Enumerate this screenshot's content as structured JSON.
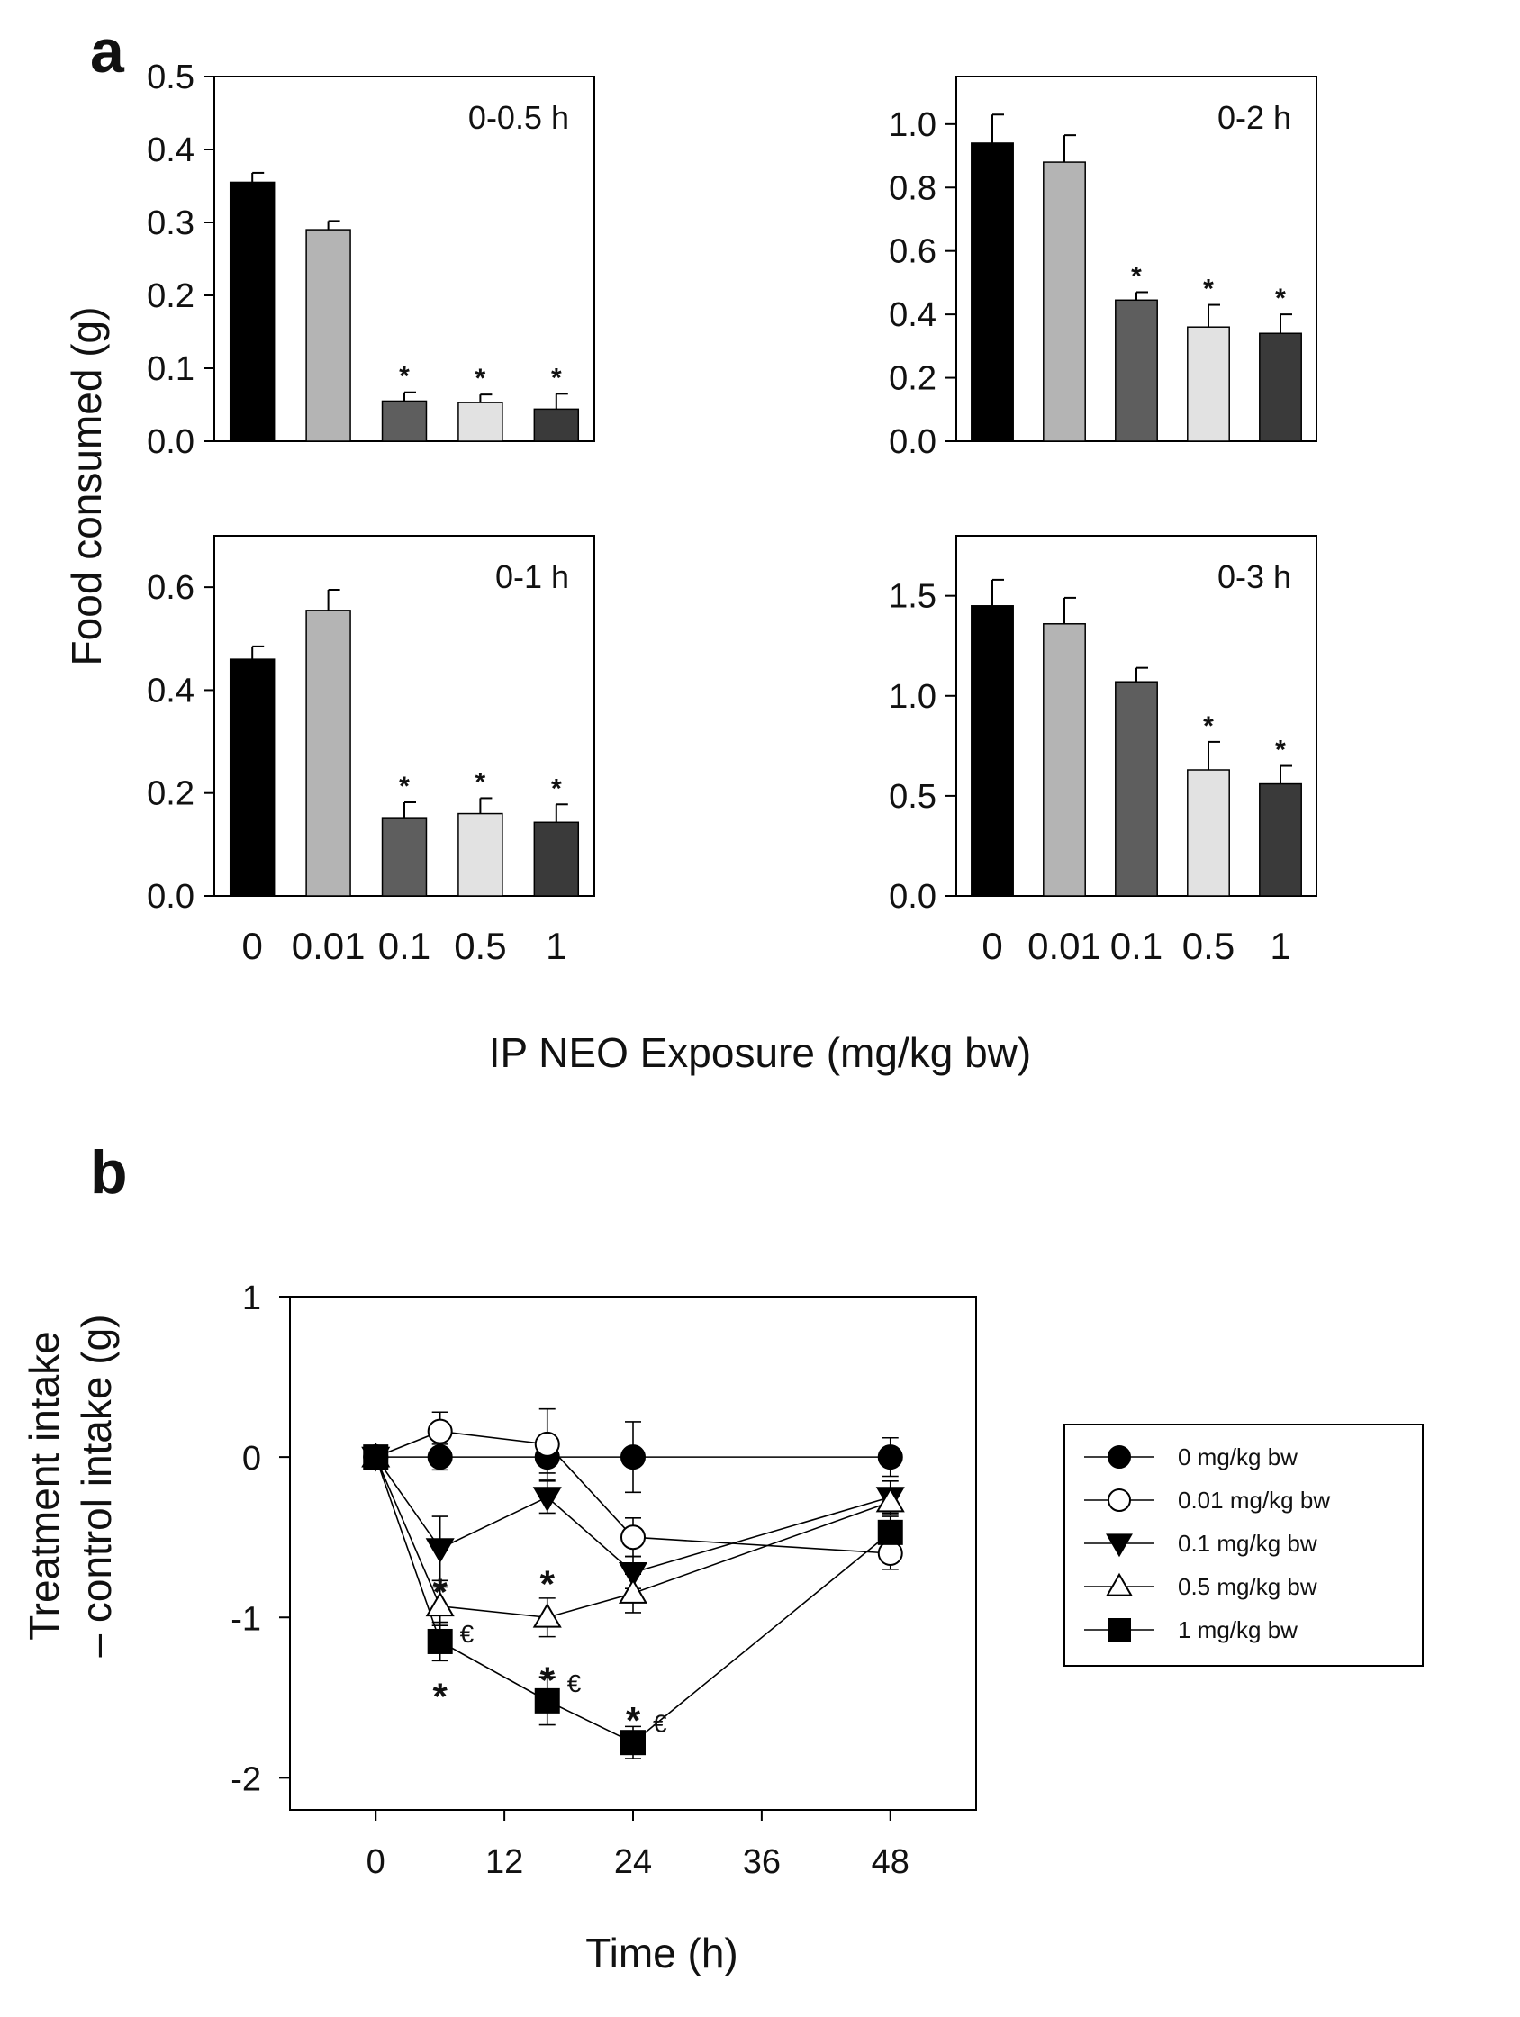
{
  "figure": {
    "panel_a_label": "a",
    "panel_b_label": "b",
    "shared_y_label": "Food consumed (g)",
    "shared_x_label": "IP NEO Exposure (mg/kg bw)"
  },
  "colors": {
    "bar_fills": [
      "#000000",
      "#b4b4b4",
      "#5e5e5e",
      "#e2e2e2",
      "#3a3a3a"
    ],
    "axis": "#000000"
  },
  "chart_data": [
    {
      "type": "bar",
      "title": "0-0.5 h",
      "categories": [
        "0",
        "0.01",
        "0.1",
        "0.5",
        "1"
      ],
      "values": [
        0.355,
        0.29,
        0.055,
        0.053,
        0.044
      ],
      "errors": [
        0.013,
        0.012,
        0.012,
        0.011,
        0.021
      ],
      "significant": [
        false,
        false,
        true,
        true,
        true
      ],
      "ylim": [
        0,
        0.5
      ],
      "yticks": [
        "0.0",
        "0.1",
        "0.2",
        "0.3",
        "0.4",
        "0.5"
      ],
      "ytick_values": [
        0,
        0.1,
        0.2,
        0.3,
        0.4,
        0.5
      ],
      "ylabel": "Food consumed (g)",
      "xlabel": "IP NEO Exposure (mg/kg bw)"
    },
    {
      "type": "bar",
      "title": "0-2 h",
      "categories": [
        "0",
        "0.01",
        "0.1",
        "0.5",
        "1"
      ],
      "values": [
        0.94,
        0.88,
        0.445,
        0.36,
        0.34
      ],
      "errors": [
        0.09,
        0.085,
        0.025,
        0.07,
        0.06
      ],
      "significant": [
        false,
        false,
        true,
        true,
        true
      ],
      "ylim": [
        0,
        1.15
      ],
      "yticks": [
        "0.0",
        "0.2",
        "0.4",
        "0.6",
        "0.8",
        "1.0"
      ],
      "ytick_values": [
        0,
        0.2,
        0.4,
        0.6,
        0.8,
        1.0
      ],
      "ylabel": "Food consumed (g)",
      "xlabel": "IP NEO Exposure (mg/kg bw)"
    },
    {
      "type": "bar",
      "title": "0-1 h",
      "categories": [
        "0",
        "0.01",
        "0.1",
        "0.5",
        "1"
      ],
      "values": [
        0.46,
        0.555,
        0.152,
        0.16,
        0.143
      ],
      "errors": [
        0.025,
        0.04,
        0.03,
        0.03,
        0.035
      ],
      "significant": [
        false,
        false,
        true,
        true,
        true
      ],
      "ylim": [
        0,
        0.7
      ],
      "yticks": [
        "0.0",
        "0.2",
        "0.4",
        "0.6"
      ],
      "ytick_values": [
        0,
        0.2,
        0.4,
        0.6
      ],
      "ylabel": "Food consumed (g)",
      "xlabel": "IP NEO Exposure (mg/kg bw)"
    },
    {
      "type": "bar",
      "title": "0-3 h",
      "categories": [
        "0",
        "0.01",
        "0.1",
        "0.5",
        "1"
      ],
      "values": [
        1.45,
        1.36,
        1.07,
        0.63,
        0.56
      ],
      "errors": [
        0.13,
        0.13,
        0.07,
        0.14,
        0.09
      ],
      "significant": [
        false,
        false,
        false,
        true,
        true
      ],
      "ylim": [
        0,
        1.8
      ],
      "yticks": [
        "0.0",
        "0.5",
        "1.0",
        "1.5"
      ],
      "ytick_values": [
        0,
        0.5,
        1.0,
        1.5
      ],
      "ylabel": "Food consumed (g)",
      "xlabel": "IP NEO Exposure (mg/kg bw)"
    },
    {
      "type": "line",
      "title": "",
      "xlabel": "Time (h)",
      "ylabel_line1": "Treatment intake",
      "ylabel_line2": "– control intake (g)",
      "xlim": [
        -8,
        56
      ],
      "ylim": [
        -2.2,
        1.0
      ],
      "xticks": [
        "0",
        "12",
        "24",
        "36",
        "48"
      ],
      "xtick_values": [
        0,
        12,
        24,
        36,
        48
      ],
      "yticks": [
        "1",
        "0",
        "-1",
        "-2"
      ],
      "ytick_values": [
        1,
        0,
        -1,
        -2
      ],
      "series": [
        {
          "name": "0 mg/kg bw",
          "marker": "circle",
          "filled": true,
          "x": [
            0,
            6,
            16,
            24,
            48
          ],
          "y": [
            0,
            0,
            0,
            0,
            0
          ],
          "err": [
            0,
            0.08,
            0.1,
            0.22,
            0.12
          ]
        },
        {
          "name": "0.01 mg/kg bw",
          "marker": "circle",
          "filled": false,
          "x": [
            0,
            6,
            16,
            24,
            48
          ],
          "y": [
            0,
            0.16,
            0.08,
            -0.5,
            -0.6
          ],
          "err": [
            0,
            0.12,
            0.22,
            0.12,
            0.1
          ]
        },
        {
          "name": "0.1 mg/kg bw",
          "marker": "triangle-down",
          "filled": true,
          "x": [
            0,
            6,
            16,
            24,
            48
          ],
          "y": [
            0,
            -0.57,
            -0.25,
            -0.72,
            -0.25
          ],
          "err": [
            0,
            0.2,
            0.1,
            0.1,
            0.1
          ]
        },
        {
          "name": "0.5 mg/kg bw",
          "marker": "triangle-up",
          "filled": false,
          "x": [
            0,
            6,
            16,
            24,
            48
          ],
          "y": [
            0,
            -0.93,
            -1.0,
            -0.85,
            -0.28
          ],
          "err": [
            0,
            0.12,
            0.12,
            0.12,
            0.08
          ]
        },
        {
          "name": "1 mg/kg bw",
          "marker": "square",
          "filled": true,
          "x": [
            0,
            6,
            16,
            24,
            48
          ],
          "y": [
            0,
            -1.15,
            -1.52,
            -1.78,
            -0.47
          ],
          "err": [
            0,
            0.12,
            0.15,
            0.1,
            0.1
          ]
        }
      ],
      "annotations": [
        {
          "text": "*",
          "x": 6,
          "y": -0.8
        },
        {
          "text": "*",
          "x": 16,
          "y": -0.75
        },
        {
          "text": "*",
          "x": 16,
          "y": -1.35
        },
        {
          "text": "*",
          "x": 6,
          "y": -1.45
        },
        {
          "text": "*",
          "x": 24,
          "y": -1.6
        },
        {
          "text": "€",
          "x": 8.5,
          "y": -1.11
        },
        {
          "text": "€",
          "x": 18.5,
          "y": -1.42
        },
        {
          "text": "€",
          "x": 26.5,
          "y": -1.67
        }
      ],
      "legend_position": "right"
    }
  ]
}
